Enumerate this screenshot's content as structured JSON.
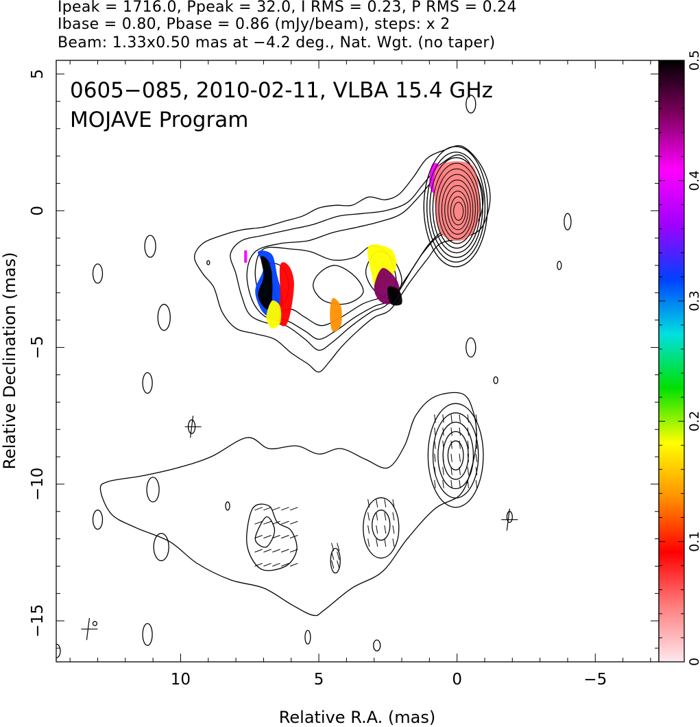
{
  "header": {
    "line1": "Ipeak = 1716.0, Ppeak = 32.0, I RMS = 0.23, P RMS = 0.24",
    "line2": "Ibase = 0.80, Pbase = 0.86 (mJy/beam), steps: x 2",
    "line3": "Beam: 1.33x0.50 mas at −4.2 deg., Nat. Wgt. (no taper)"
  },
  "chart_data": {
    "type": "contour",
    "title": "0605−085, 2010-02-11, VLBA 15.4 GHz",
    "subtitle": "MOJAVE Program",
    "xlabel": "Relative R.A. (mas)",
    "ylabel": "Relative Declination (mas)",
    "xlim": [
      14.5,
      -7.3
    ],
    "ylim": [
      -16.5,
      5.5
    ],
    "xticks": [
      10,
      5,
      0,
      -5
    ],
    "xtick_labels": [
      "10",
      "5",
      "0",
      "−5"
    ],
    "yticks": [
      5,
      0,
      -5,
      -10,
      -15
    ],
    "ytick_labels": [
      "5",
      "0",
      "−5",
      "−10",
      "−15"
    ],
    "colorbar": {
      "range": [
        0,
        0.5
      ],
      "ticks": [
        0,
        0.1,
        0.2,
        0.3,
        0.4,
        0.5
      ],
      "tick_labels": [
        "0",
        "0.1",
        "0.2",
        "0.3",
        "0.4",
        "0.5"
      ],
      "stops": [
        "#fde8ee",
        "#ff8080",
        "#ff0000",
        "#ff9000",
        "#ffff00",
        "#00e000",
        "#00e0e0",
        "#0040ff",
        "#a000ff",
        "#ff00ff",
        "#800060",
        "#000000"
      ]
    },
    "core": {
      "x": 0.0,
      "y": 0.0
    },
    "upper_panel": {
      "contour_levels": 11,
      "fractional_polarization_patches": [
        {
          "x": 6.9,
          "y": -2.6,
          "value": 0.48
        },
        {
          "x": 6.6,
          "y": -3.3,
          "value": 0.3
        },
        {
          "x": 6.2,
          "y": -3.0,
          "value": 0.12
        },
        {
          "x": 4.4,
          "y": -3.8,
          "value": 0.14
        },
        {
          "x": 2.8,
          "y": -2.2,
          "value": 0.17
        },
        {
          "x": 2.4,
          "y": -3.0,
          "value": 0.44
        },
        {
          "x": 0.7,
          "y": 1.2,
          "value": 0.42
        },
        {
          "x": 0.1,
          "y": 0.3,
          "value": 0.05
        }
      ]
    },
    "lower_panel": {
      "offset_y": -9.0,
      "description_peaks": [
        {
          "x": 0.0,
          "y": -9.0
        },
        {
          "x": 6.2,
          "y": -12.0
        },
        {
          "x": 2.7,
          "y": -11.7
        }
      ]
    }
  }
}
